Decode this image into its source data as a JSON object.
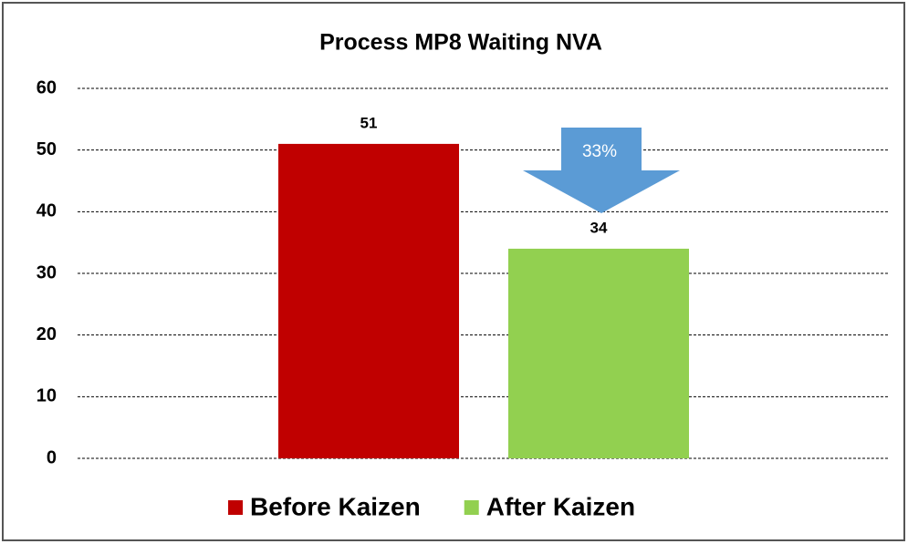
{
  "chart_data": {
    "type": "bar",
    "title": "Process MP8 Waiting NVA",
    "categories": [
      null
    ],
    "series": [
      {
        "name": "Before Kaizen",
        "color": "#c00000",
        "values": [
          51
        ]
      },
      {
        "name": "After Kaizen",
        "color": "#92d050",
        "values": [
          34
        ]
      }
    ],
    "ylim": [
      0,
      60
    ],
    "yticks": [
      0,
      10,
      20,
      30,
      40,
      50,
      60
    ],
    "grid": true,
    "annotation": "33%"
  }
}
